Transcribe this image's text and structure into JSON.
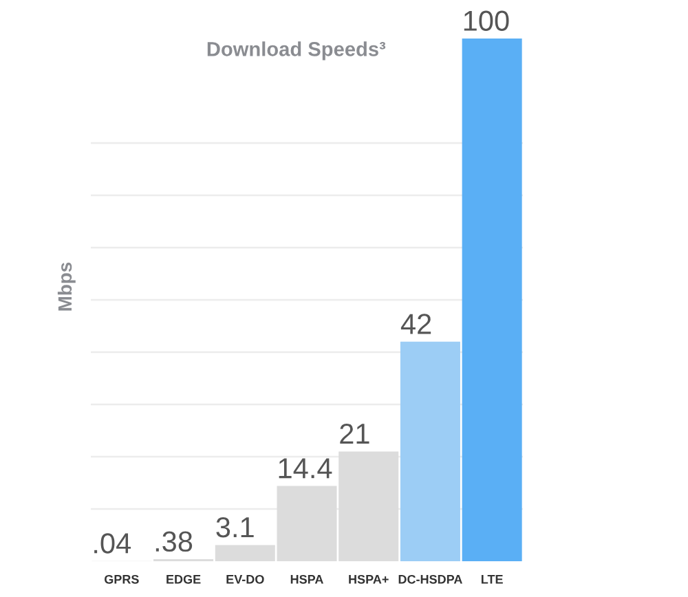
{
  "chart_data": {
    "type": "bar",
    "title": "Download Speeds³",
    "ylabel": "Mbps",
    "categories": [
      "GPRS",
      "EDGE",
      "EV-DO",
      "HSPA",
      "HSPA+",
      "DC-HSDPA",
      "LTE"
    ],
    "values": [
      0.04,
      0.38,
      3.1,
      14.4,
      21,
      42,
      100
    ],
    "colors": [
      "#dcdcdc",
      "#dcdcdc",
      "#dcdcdc",
      "#dcdcdc",
      "#dcdcdc",
      "#9ccdf5",
      "#5aaff5"
    ],
    "value_labels": [
      ".04",
      ".38",
      "3.1",
      "14.4",
      "21",
      "42",
      "100"
    ],
    "yticks": [
      {
        "value": 10,
        "label": null
      },
      {
        "value": 20,
        "label": null
      },
      {
        "value": 30,
        "label": null
      },
      {
        "value": 40,
        "label": null
      },
      {
        "value": 50,
        "label": null
      },
      {
        "value": 60,
        "label": null
      },
      {
        "value": 70,
        "label": null
      },
      {
        "value": 80,
        "label": null
      }
    ],
    "grid": "y",
    "tick_labels": "x"
  }
}
